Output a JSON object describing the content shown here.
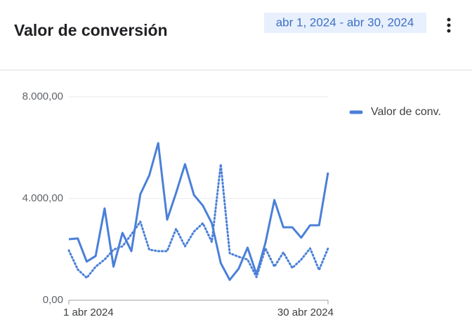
{
  "header": {
    "title": "Valor de conversión",
    "date_range": "abr 1, 2024 - abr 30, 2024"
  },
  "chart_data": {
    "type": "line",
    "categories": [
      "1 abr 2024",
      null,
      null,
      null,
      null,
      null,
      null,
      null,
      null,
      null,
      null,
      null,
      null,
      null,
      null,
      null,
      null,
      null,
      null,
      null,
      null,
      null,
      null,
      null,
      null,
      null,
      null,
      null,
      null,
      "30 abr 2024"
    ],
    "series": [
      {
        "name": "Valor de conv.",
        "color": "#4a80d8",
        "style": "solid",
        "values": [
          2400,
          2430,
          1520,
          1740,
          3610,
          1320,
          2650,
          1930,
          4170,
          4910,
          6180,
          3170,
          4220,
          5350,
          4140,
          3720,
          3030,
          1460,
          800,
          1240,
          2070,
          1020,
          2260,
          3940,
          2870,
          2870,
          2460,
          2950,
          2950,
          5020
        ]
      },
      {
        "color": "#4a80d8",
        "style": "dotted",
        "values": [
          1960,
          1210,
          880,
          1320,
          1600,
          1990,
          2120,
          2590,
          3090,
          1990,
          1930,
          1930,
          2810,
          2120,
          2700,
          3030,
          2290,
          5350,
          1850,
          1710,
          1600,
          910,
          2040,
          1320,
          1880,
          1270,
          1600,
          2040,
          1190,
          2040
        ]
      }
    ],
    "ylim": [
      0,
      8000
    ],
    "yticks": [
      {
        "value": 0,
        "label": "0,00"
      },
      {
        "value": 4000,
        "label": "4.000,00"
      },
      {
        "value": 8000,
        "label": "8.000,00"
      }
    ],
    "grid": true,
    "legend": "right"
  }
}
